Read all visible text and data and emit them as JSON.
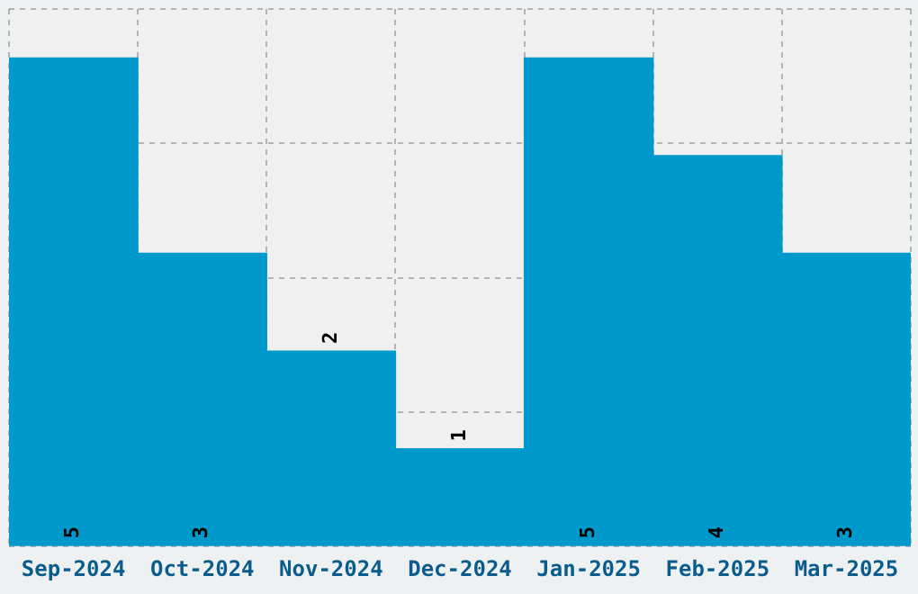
{
  "chart_data": {
    "type": "bar",
    "categories": [
      "Sep-2024",
      "Oct-2024",
      "Nov-2024",
      "Dec-2024",
      "Jan-2025",
      "Feb-2025",
      "Mar-2025"
    ],
    "values": [
      5,
      3,
      2,
      1,
      5,
      4,
      3
    ],
    "color": "#0099cc",
    "ylim": [
      0,
      5.5
    ],
    "yticks": [
      {
        "value": 0,
        "label": null
      },
      {
        "value": 1.375,
        "label": null
      },
      {
        "value": 2.75,
        "label": null
      },
      {
        "value": 4.125,
        "label": null
      },
      {
        "value": 5.5,
        "label": null
      }
    ],
    "tick_labels": "x",
    "grid": true,
    "legend": false,
    "data_labels": true
  }
}
